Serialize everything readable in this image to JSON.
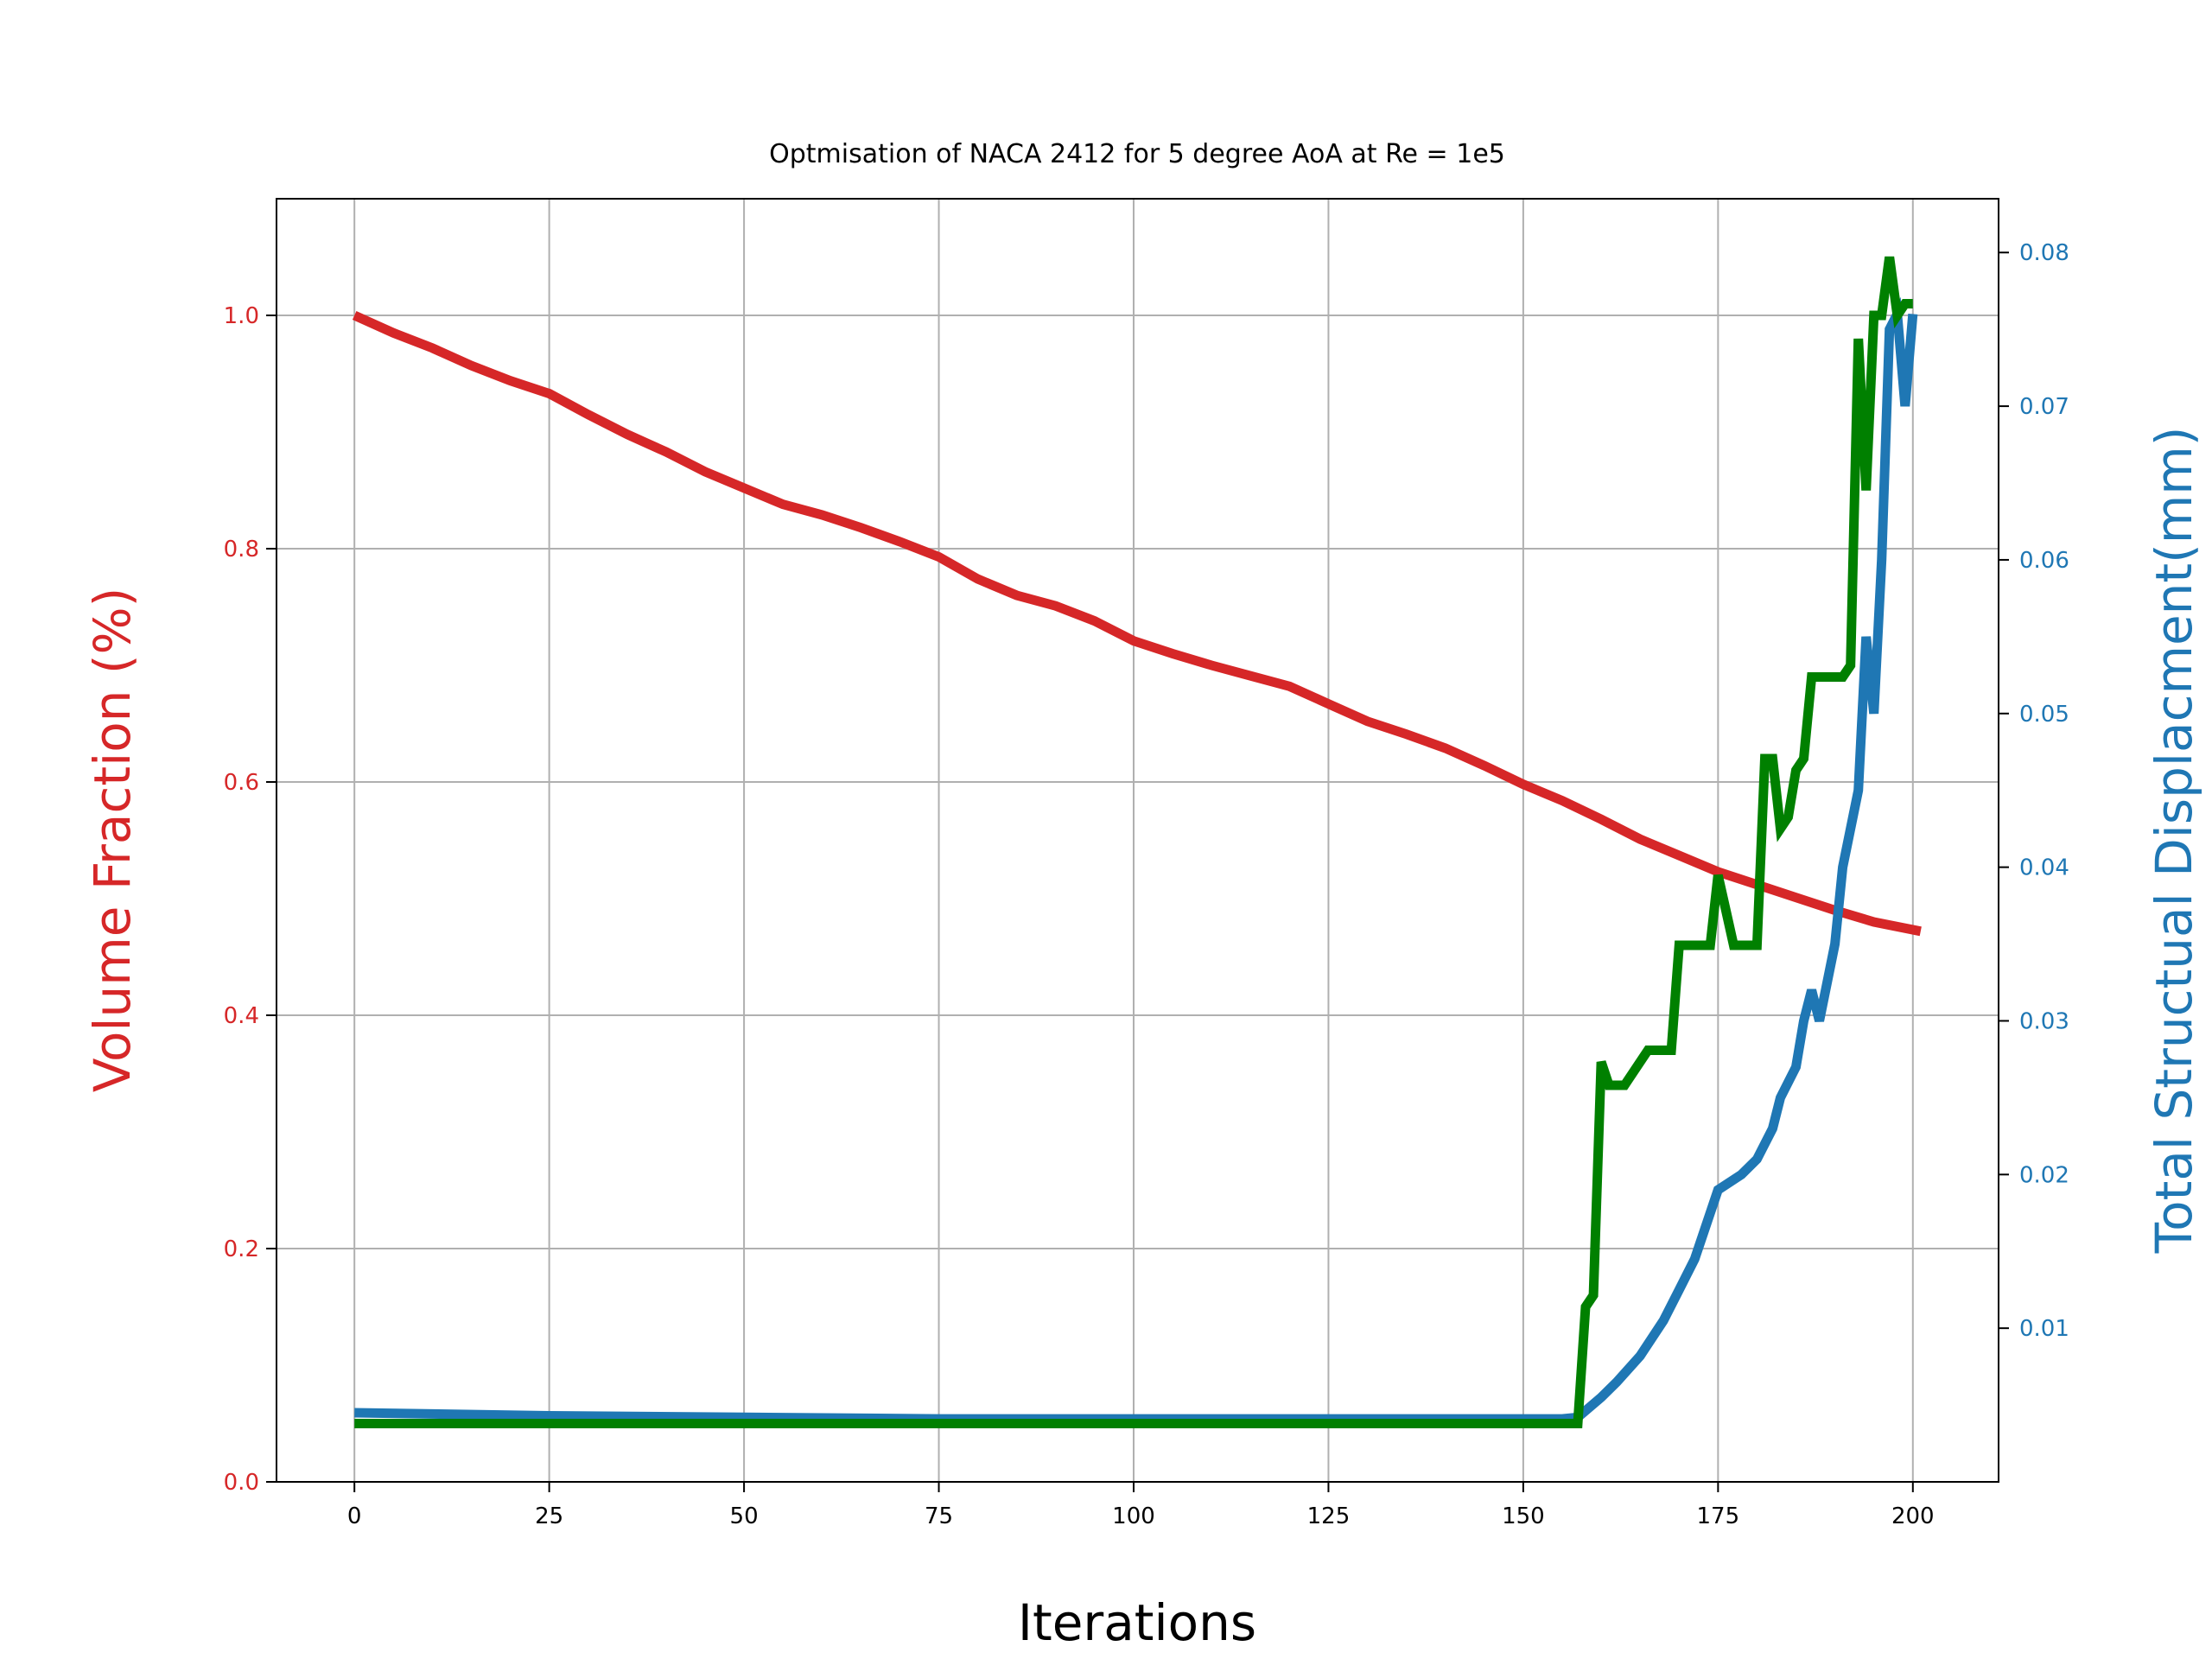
{
  "chart_data": {
    "type": "line",
    "title": "Optmisation of NACA 2412 for 5 degree AoA at Re = 1e5",
    "xlabel": "Iterations",
    "ylabel_left": "Volume Fraction (%)",
    "ylabel_right": "Total Structual Displacment(mm)",
    "xlim": [
      -10,
      211
    ],
    "ylim_left": [
      0.0,
      1.1
    ],
    "ylim_right": [
      0.0,
      0.0835
    ],
    "xticks": [
      "0",
      "25",
      "50",
      "75",
      "100",
      "125",
      "150",
      "175",
      "200"
    ],
    "yticks_left": [
      "0.0",
      "0.2",
      "0.4",
      "0.6",
      "0.8",
      "1.0"
    ],
    "yticks_right": [
      "0.01",
      "0.02",
      "0.03",
      "0.04",
      "0.05",
      "0.06",
      "0.07",
      "0.08"
    ],
    "grid": true,
    "colors": {
      "left_axis": "#d62728",
      "right_axis": "#1f77b4",
      "volume_fraction": "#d62728",
      "displacement": "#1f77b4",
      "third_series": "#008000"
    },
    "series": [
      {
        "axis": "left",
        "color": "#d62728",
        "x": [
          0,
          5,
          10,
          15,
          20,
          25,
          30,
          35,
          40,
          45,
          50,
          55,
          60,
          65,
          70,
          75,
          80,
          85,
          90,
          95,
          100,
          105,
          110,
          115,
          120,
          125,
          130,
          135,
          140,
          145,
          150,
          155,
          160,
          165,
          170,
          175,
          180,
          185,
          190,
          195,
          201
        ],
        "y": [
          1.0,
          0.985,
          0.972,
          0.957,
          0.944,
          0.933,
          0.915,
          0.898,
          0.883,
          0.866,
          0.852,
          0.838,
          0.829,
          0.818,
          0.806,
          0.793,
          0.774,
          0.76,
          0.751,
          0.738,
          0.721,
          0.71,
          0.7,
          0.691,
          0.682,
          0.667,
          0.652,
          0.641,
          0.629,
          0.614,
          0.598,
          0.584,
          0.568,
          0.551,
          0.537,
          0.523,
          0.512,
          0.501,
          0.49,
          0.48,
          0.472
        ]
      },
      {
        "axis": "right",
        "color": "#1f77b4",
        "x": [
          0,
          25,
          50,
          75,
          100,
          125,
          150,
          155,
          157,
          160,
          162,
          165,
          168,
          170,
          172,
          175,
          178,
          180,
          182,
          183,
          185,
          186,
          187,
          188,
          190,
          191,
          193,
          194,
          195,
          196,
          197,
          198,
          199,
          200
        ],
        "y": [
          0.0045,
          0.0043,
          0.0042,
          0.0041,
          0.0041,
          0.0041,
          0.0041,
          0.0041,
          0.0042,
          0.0055,
          0.0065,
          0.0082,
          0.0105,
          0.0125,
          0.0145,
          0.019,
          0.02,
          0.021,
          0.023,
          0.025,
          0.027,
          0.03,
          0.032,
          0.03,
          0.035,
          0.04,
          0.045,
          0.055,
          0.05,
          0.06,
          0.075,
          0.076,
          0.07,
          0.076
        ]
      },
      {
        "axis": "left",
        "color": "#008000",
        "x": [
          0,
          25,
          50,
          75,
          100,
          125,
          150,
          155,
          157,
          158,
          159,
          160,
          161,
          162,
          163,
          166,
          167,
          169,
          170,
          171,
          172,
          173,
          174,
          175,
          176,
          177,
          178,
          180,
          181,
          182,
          183,
          184,
          185,
          186,
          187,
          188,
          189,
          190,
          191,
          192,
          193,
          194,
          195,
          196,
          197,
          198,
          199,
          200
        ],
        "y": [
          0.05,
          0.05,
          0.05,
          0.05,
          0.05,
          0.05,
          0.05,
          0.05,
          0.05,
          0.15,
          0.16,
          0.36,
          0.34,
          0.34,
          0.34,
          0.37,
          0.37,
          0.37,
          0.46,
          0.46,
          0.46,
          0.46,
          0.46,
          0.52,
          0.49,
          0.46,
          0.46,
          0.46,
          0.62,
          0.62,
          0.56,
          0.57,
          0.61,
          0.62,
          0.69,
          0.69,
          0.69,
          0.69,
          0.69,
          0.7,
          0.98,
          0.85,
          1.0,
          1.0,
          1.05,
          1.0,
          1.01,
          1.01
        ]
      }
    ]
  }
}
